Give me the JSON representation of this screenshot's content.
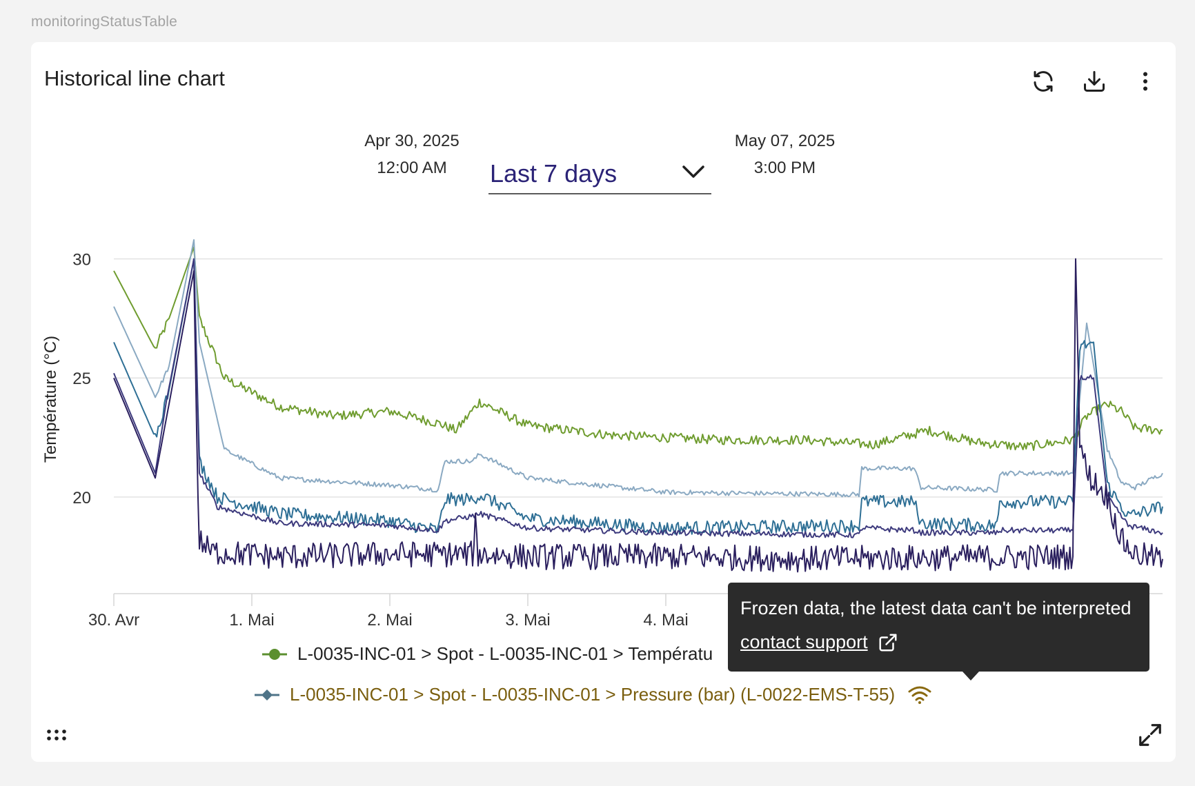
{
  "component_label": "monitoringStatusTable",
  "card": {
    "title": "Historical line chart",
    "toolbar": {
      "refresh_icon": "refresh-icon",
      "download_icon": "download-icon",
      "menu_icon": "more-vertical-icon"
    }
  },
  "date_range": {
    "start_date": "Apr 30, 2025",
    "start_time": "12:00 AM",
    "end_date": "May 07, 2025",
    "end_time": "3:00 PM",
    "selected": "Last 7 days",
    "chevron_icon": "chevron-down-icon"
  },
  "tooltip": {
    "text": "Frozen data, the latest data can't be interpreted",
    "link": "contact support",
    "link_icon": "external-link-icon"
  },
  "footer": {
    "drag_icon": "drag-handle-icon",
    "expand_icon": "expand-icon"
  },
  "chart_data": {
    "type": "line",
    "title": "",
    "xlabel": "",
    "ylabel": "Température (°C)",
    "x_ticks": [
      {
        "x": 0,
        "label": "30. Avr"
      },
      {
        "x": 1,
        "label": "1. Mai"
      },
      {
        "x": 2,
        "label": "2. Mai"
      },
      {
        "x": 3,
        "label": "3. Mai"
      },
      {
        "x": 4,
        "label": "4. Mai"
      }
    ],
    "y_ticks": [
      20,
      25,
      30
    ],
    "xlim": [
      0,
      7.6
    ],
    "ylim": [
      16,
      31
    ],
    "grid": true,
    "legend": [
      {
        "label": "L-0035-INC-01 > Spot - L-0035-INC-01 > Températu",
        "color": "#5b8f2f",
        "marker": "circle"
      },
      {
        "label": "L-0035-INC-01 > Spot - L-0035-INC-01 > Pressure (bar) (L-0022-EMS-T-55)",
        "color": "#4f7488",
        "marker": "diamond",
        "status": "frozen",
        "status_icon": "wifi-signal-icon",
        "text_color": "#7a5e0e"
      }
    ],
    "series": [
      {
        "color": "#6f9c2f",
        "x": [
          0,
          0.3,
          0.4,
          0.58,
          0.62,
          0.8,
          1.2,
          1.6,
          2.0,
          2.35,
          2.48,
          2.65,
          3.0,
          3.6,
          4.4,
          5.0,
          5.5,
          5.9,
          6.25,
          6.6,
          6.95,
          7.05,
          7.2,
          7.3,
          7.4,
          7.6
        ],
        "y": [
          29.5,
          26.2,
          27.5,
          30.5,
          27.5,
          25.0,
          23.8,
          23.4,
          23.6,
          23.1,
          22.8,
          24.0,
          23.0,
          22.6,
          22.4,
          22.4,
          22.2,
          22.8,
          22.3,
          22.1,
          22.4,
          23.4,
          23.9,
          23.6,
          22.9,
          22.8
        ],
        "noise": 0.2
      },
      {
        "color": "#8aa9c2",
        "x": [
          0,
          0.3,
          0.4,
          0.58,
          0.62,
          0.8,
          1.2,
          2.0,
          2.35,
          2.4,
          2.6,
          2.65,
          3.0,
          4.0,
          5.4,
          5.42,
          5.8,
          5.85,
          6.4,
          6.42,
          6.95,
          7.05,
          7.2,
          7.3,
          7.4,
          7.6
        ],
        "y": [
          28.0,
          24.2,
          25.5,
          30.8,
          26.5,
          22.0,
          20.8,
          20.5,
          20.3,
          21.5,
          21.5,
          21.8,
          20.8,
          20.2,
          20.1,
          21.2,
          21.2,
          20.4,
          20.3,
          21.0,
          21.0,
          27.3,
          22.0,
          20.6,
          20.4,
          21.0
        ],
        "noise": 0.1
      },
      {
        "color": "#2e6f95",
        "x": [
          0,
          0.3,
          0.4,
          0.58,
          0.62,
          0.75,
          1.2,
          2.0,
          2.35,
          2.4,
          2.6,
          2.65,
          3.0,
          4.0,
          5.4,
          5.42,
          5.8,
          5.85,
          6.4,
          6.42,
          6.95,
          7.0,
          7.1,
          7.2,
          7.35,
          7.6
        ],
        "y": [
          26.5,
          22.5,
          24.5,
          30.0,
          21.5,
          20.0,
          19.3,
          19.0,
          18.6,
          19.9,
          19.9,
          20.1,
          19.1,
          18.7,
          18.8,
          19.8,
          19.8,
          18.9,
          18.8,
          19.8,
          19.8,
          26.3,
          26.5,
          20.5,
          19.2,
          19.6
        ],
        "noise": 0.28
      },
      {
        "color": "#3d3a7d",
        "x": [
          0,
          0.3,
          0.38,
          0.58,
          0.62,
          0.75,
          1.2,
          2.0,
          2.35,
          2.4,
          2.6,
          2.65,
          3.0,
          4.0,
          5.4,
          5.42,
          5.8,
          5.85,
          6.4,
          6.42,
          6.95,
          7.0,
          7.1,
          7.2,
          7.35,
          7.6
        ],
        "y": [
          25.2,
          21.0,
          24.0,
          30.0,
          21.0,
          19.6,
          18.9,
          18.8,
          18.6,
          19.0,
          19.2,
          19.3,
          18.7,
          18.5,
          18.4,
          18.7,
          18.6,
          18.5,
          18.5,
          18.6,
          18.6,
          25.0,
          25.0,
          20.0,
          18.8,
          18.5
        ],
        "noise": 0.12
      },
      {
        "color": "#2a1f5e",
        "x": [
          0,
          0.3,
          0.58,
          0.61,
          0.62,
          0.7,
          1.2,
          2.0,
          2.6,
          2.62,
          2.64,
          3.0,
          4.0,
          5.0,
          6.95,
          6.97,
          7.0,
          7.05,
          7.2,
          7.3,
          7.4,
          7.6
        ],
        "y": [
          25.0,
          20.8,
          29.5,
          19.5,
          18.2,
          17.7,
          17.5,
          17.6,
          17.6,
          18.8,
          17.6,
          17.5,
          17.5,
          17.4,
          17.5,
          30.0,
          22.5,
          21.0,
          20.0,
          18.2,
          17.6,
          17.4
        ],
        "noise": 0.55
      }
    ]
  }
}
